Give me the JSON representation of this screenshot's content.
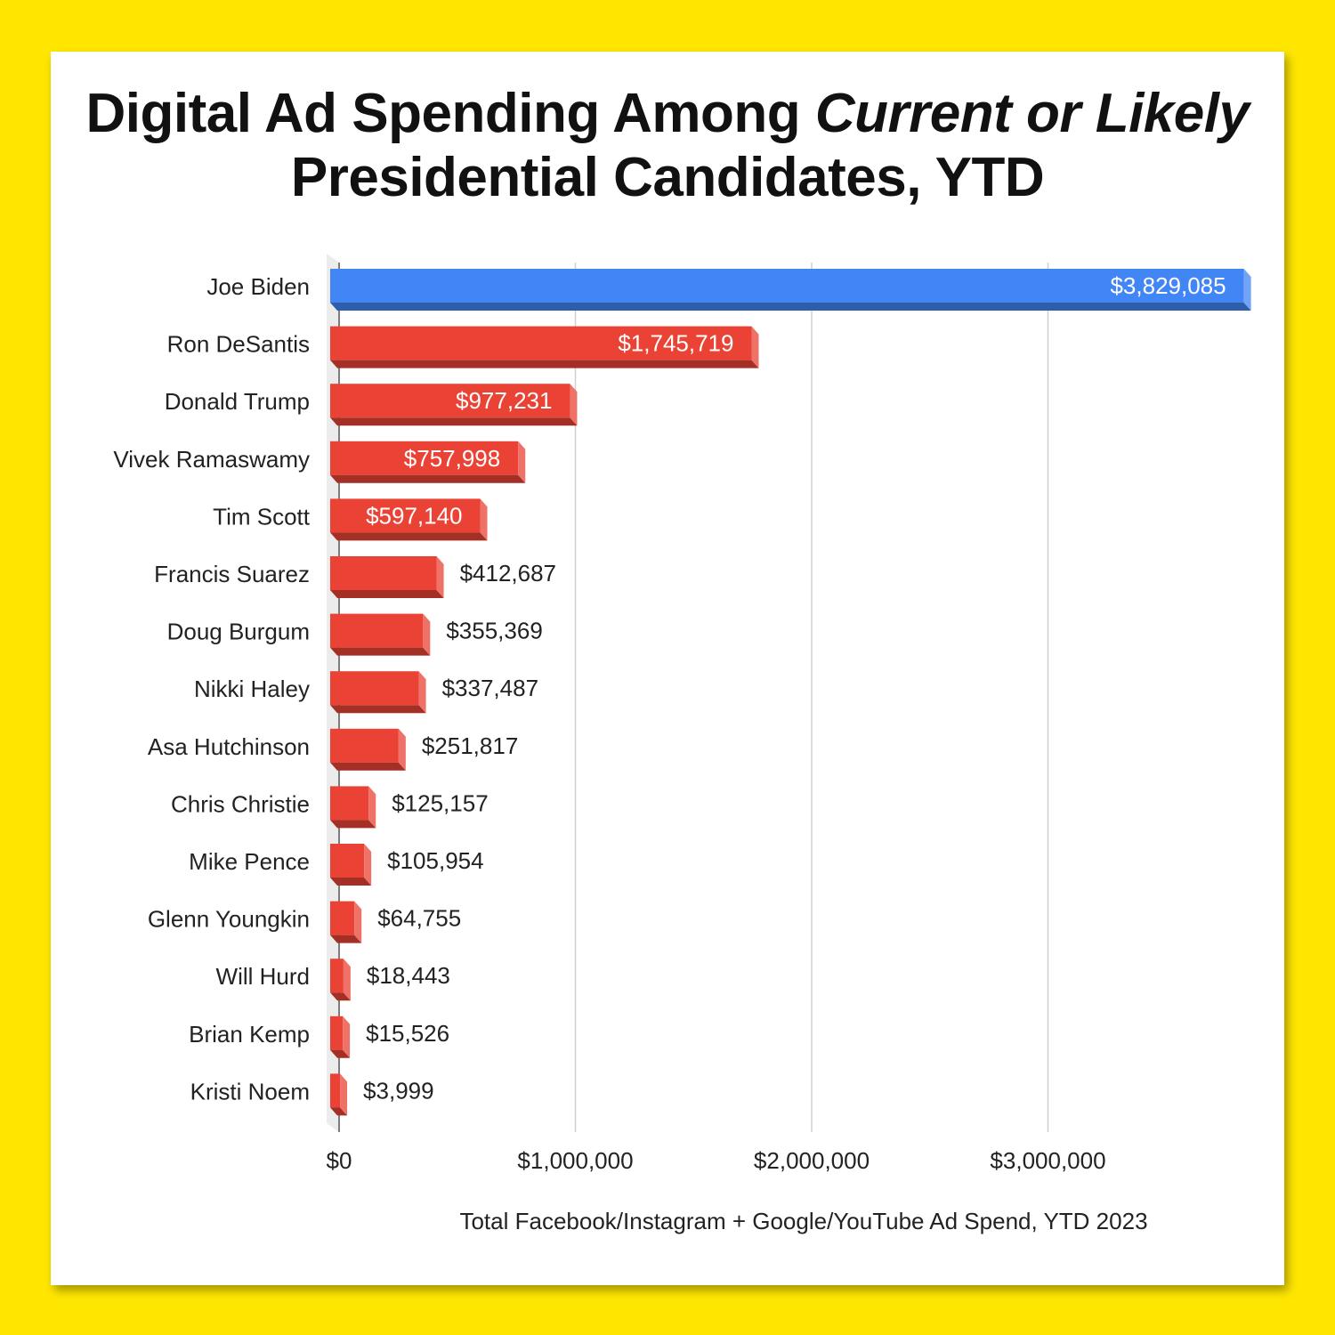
{
  "title": {
    "line1_normal": "Digital Ad Spending Among ",
    "line1_italic": "Current or Likely",
    "line2": "Presidential Candidates, YTD"
  },
  "chart_data": {
    "type": "bar",
    "orientation": "horizontal",
    "title": "Digital Ad Spending Among Current or Likely Presidential Candidates, YTD",
    "xlabel": "Total Facebook/Instagram + Google/YouTube Ad Spend, YTD 2023",
    "ylabel": "",
    "xlim": [
      0,
      3870000
    ],
    "xticks": [
      0,
      1000000,
      2000000,
      3000000
    ],
    "xtick_labels": [
      "$0",
      "$1,000,000",
      "$2,000,000",
      "$3,000,000"
    ],
    "grid": true,
    "categories": [
      "Joe Biden",
      "Ron DeSantis",
      "Donald Trump",
      "Vivek Ramaswamy",
      "Tim Scott",
      "Francis Suarez",
      "Doug Burgum",
      "Nikki Haley",
      "Asa Hutchinson",
      "Chris Christie",
      "Mike Pence",
      "Glenn Youngkin",
      "Will Hurd",
      "Brian Kemp",
      "Kristi Noem"
    ],
    "values": [
      3829085,
      1745719,
      977231,
      757998,
      597140,
      412687,
      355369,
      337487,
      251817,
      125157,
      105954,
      64755,
      18443,
      15526,
      3999
    ],
    "value_labels": [
      "$3,829,085",
      "$1,745,719",
      "$977,231",
      "$757,998",
      "$597,140",
      "$412,687",
      "$355,369",
      "$337,487",
      "$251,817",
      "$125,157",
      "$105,954",
      "$64,755",
      "$18,443",
      "$15,526",
      "$3,999"
    ],
    "colors": [
      "#4285f4",
      "#ea4335",
      "#ea4335",
      "#ea4335",
      "#ea4335",
      "#ea4335",
      "#ea4335",
      "#ea4335",
      "#ea4335",
      "#ea4335",
      "#ea4335",
      "#ea4335",
      "#ea4335",
      "#ea4335",
      "#ea4335"
    ],
    "style": "3d"
  }
}
